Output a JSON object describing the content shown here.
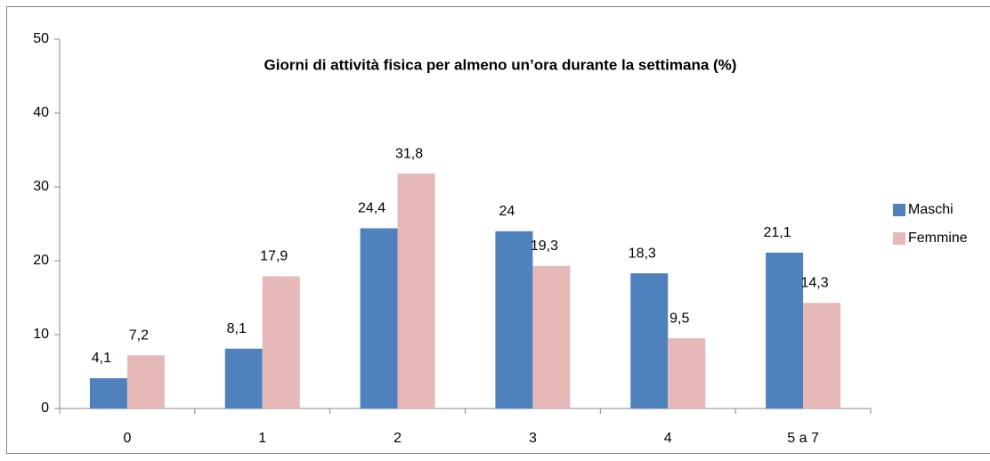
{
  "chart_data": {
    "type": "bar",
    "title": "Giorni di attività fisica per almeno un’ora durante la settimana (%)",
    "categories": [
      "0",
      "1",
      "2",
      "3",
      "4",
      "5 a 7"
    ],
    "series": [
      {
        "name": "Maschi",
        "color": "#4f81bd",
        "values": [
          4.1,
          8.1,
          24.4,
          24,
          18.3,
          21.1
        ],
        "value_labels": [
          "4,1",
          "8,1",
          "24,4",
          "24",
          "18,3",
          "21,1"
        ]
      },
      {
        "name": "Femmine",
        "color": "#e6b9b8",
        "values": [
          7.2,
          17.9,
          31.8,
          19.3,
          9.5,
          14.3
        ],
        "value_labels": [
          "7,2",
          "17,9",
          "31,8",
          "19,3",
          "9,5",
          "14,3"
        ]
      }
    ],
    "ylim": [
      0,
      50
    ],
    "yticks": [
      0,
      10,
      20,
      30,
      40,
      50
    ],
    "grid": false,
    "legend": "right"
  }
}
